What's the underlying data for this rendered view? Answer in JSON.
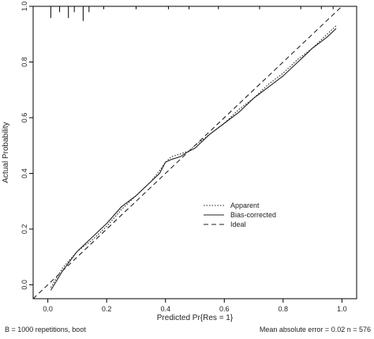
{
  "chart_data": {
    "type": "line",
    "xlabel": "Predicted Pr{Res = 1}",
    "ylabel": "Actual Probability",
    "xlim": [
      -0.05,
      1.05
    ],
    "ylim": [
      -0.05,
      1.0
    ],
    "x_ticks": [
      0.0,
      0.2,
      0.4,
      0.6,
      0.8,
      1.0
    ],
    "x_tick_labels": [
      "0.0",
      "0.2",
      "0.4",
      "0.6",
      "0.8",
      "1.0"
    ],
    "y_ticks": [
      0.0,
      0.2,
      0.4,
      0.6,
      0.8,
      1.0
    ],
    "y_tick_labels": [
      "0.0",
      "0.2",
      "0.4",
      "0.6",
      "0.8",
      "1.0"
    ],
    "grid": false,
    "legend_position": "center-right",
    "series": [
      {
        "name": "Apparent",
        "line_style": "dotted",
        "x": [
          0.01,
          0.05,
          0.1,
          0.15,
          0.2,
          0.25,
          0.3,
          0.35,
          0.38,
          0.4,
          0.42,
          0.45,
          0.48,
          0.5,
          0.55,
          0.6,
          0.65,
          0.7,
          0.75,
          0.8,
          0.85,
          0.9,
          0.95,
          0.98
        ],
        "y": [
          -0.01,
          0.06,
          0.12,
          0.16,
          0.21,
          0.27,
          0.32,
          0.37,
          0.41,
          0.44,
          0.46,
          0.47,
          0.48,
          0.5,
          0.54,
          0.58,
          0.63,
          0.67,
          0.72,
          0.76,
          0.81,
          0.85,
          0.9,
          0.93
        ]
      },
      {
        "name": "Bias-corrected",
        "line_style": "solid",
        "x": [
          0.01,
          0.05,
          0.1,
          0.15,
          0.2,
          0.25,
          0.3,
          0.35,
          0.38,
          0.4,
          0.42,
          0.45,
          0.48,
          0.5,
          0.55,
          0.6,
          0.65,
          0.7,
          0.75,
          0.8,
          0.85,
          0.9,
          0.95,
          0.98
        ],
        "y": [
          -0.02,
          0.05,
          0.12,
          0.17,
          0.22,
          0.28,
          0.32,
          0.37,
          0.4,
          0.44,
          0.45,
          0.46,
          0.48,
          0.49,
          0.54,
          0.58,
          0.62,
          0.67,
          0.71,
          0.75,
          0.8,
          0.85,
          0.89,
          0.92
        ]
      },
      {
        "name": "Ideal",
        "line_style": "dashed",
        "x": [
          -0.05,
          1.05
        ],
        "y": [
          -0.05,
          1.05
        ]
      }
    ],
    "rug": {
      "description_free": true,
      "x": [
        0.01,
        0.04,
        0.07,
        0.09,
        0.12,
        0.14,
        0.19,
        0.3,
        0.41,
        0.48,
        0.58,
        0.72,
        0.86,
        0.93,
        0.97
      ],
      "lengths": [
        0.04,
        0.02,
        0.04,
        0.02,
        0.05,
        0.02,
        0.01,
        0.01,
        0.01,
        0.01,
        0.01,
        0.01,
        0.01,
        0.01,
        0.01
      ]
    }
  },
  "footer": {
    "left": "B = 1000 repetitions, boot",
    "right": "Mean absolute error = 0.02 n = 576"
  },
  "colors": {
    "line": "#222222",
    "axis": "#000000"
  }
}
